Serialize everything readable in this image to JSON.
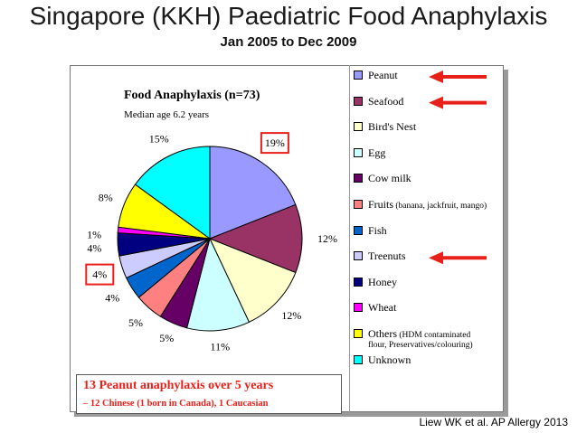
{
  "slide": {
    "title": "Singapore (KKH)  Paediatric Food Anaphylaxis",
    "subtitle": "Jan 2005 to Dec 2009",
    "citation": "Liew WK et al. AP Allergy 2013"
  },
  "callout": {
    "line1": "13 Peanut anaphylaxis over 5 years",
    "line2": "– 12 Chinese (1 born in Canada), 1 Caucasian"
  },
  "chart_data": {
    "type": "pie",
    "title": "Food Anaphylaxis (n=73)",
    "subtitle": "Median age 6.2 years",
    "categories": [
      "Peanut",
      "Seafood",
      "Bird's Nest",
      "Egg",
      "Cow milk",
      "Fruits",
      "Fish",
      "Treenuts",
      "Honey",
      "Wheat",
      "Others",
      "Unknown"
    ],
    "values": [
      19,
      12,
      12,
      11,
      5,
      5,
      4,
      4,
      4,
      1,
      8,
      15
    ],
    "labels": [
      "19%",
      "12%",
      "12%",
      "11%",
      "5%",
      "5%",
      "4%",
      "4%",
      "4%",
      "1%",
      "8%",
      "15%"
    ],
    "colors": [
      "#9999ff",
      "#993366",
      "#ffffcc",
      "#ccffff",
      "#660066",
      "#ff8080",
      "#0066cc",
      "#ccccff",
      "#000080",
      "#ff00ff",
      "#ffff00",
      "#00ffff"
    ],
    "legend": [
      {
        "label": "Peanut",
        "note": ""
      },
      {
        "label": "Seafood",
        "note": ""
      },
      {
        "label": "Bird's Nest",
        "note": ""
      },
      {
        "label": "Egg",
        "note": ""
      },
      {
        "label": "Cow milk",
        "note": ""
      },
      {
        "label": "Fruits",
        "note": "(banana, jackfruit, mango)"
      },
      {
        "label": "Fish",
        "note": ""
      },
      {
        "label": "Treenuts",
        "note": ""
      },
      {
        "label": "Honey",
        "note": ""
      },
      {
        "label": "Wheat",
        "note": ""
      },
      {
        "label": "Others",
        "note": "(HDM contaminated flour, Preservatives/colouring)"
      },
      {
        "label": "Unknown",
        "note": ""
      }
    ],
    "highlighted_labels": [
      "19%",
      "4%"
    ],
    "highlighted_legend": [
      "Peanut",
      "Seafood",
      "Treenuts"
    ],
    "legend_placement": "right"
  }
}
